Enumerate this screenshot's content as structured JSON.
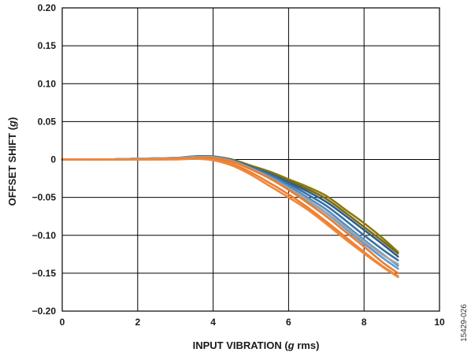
{
  "chart_data": {
    "type": "line",
    "xlabel_parts": [
      "INPUT VIBRATION (",
      "g",
      " rms)"
    ],
    "ylabel_parts": [
      "OFFSET SHIFT (",
      "g",
      ")"
    ],
    "xlim": [
      0,
      10
    ],
    "ylim": [
      -0.2,
      0.2
    ],
    "x_ticks": [
      0,
      2,
      4,
      6,
      8,
      10
    ],
    "x_tick_labels": [
      "0",
      "2",
      "4",
      "6",
      "8",
      "10"
    ],
    "y_ticks": [
      0.2,
      0.15,
      0.1,
      0.05,
      0,
      -0.05,
      -0.1,
      -0.15,
      -0.2
    ],
    "y_tick_labels": [
      "0.20",
      "0.15",
      "0.10",
      "0.05",
      "0",
      "−0.05",
      "−0.10",
      "−0.15",
      "−0.20"
    ],
    "grid": true,
    "legend": "none",
    "x": [
      0,
      1,
      2,
      3,
      3.5,
      4,
      4.5,
      5,
      5.5,
      6,
      6.5,
      7,
      7.5,
      8,
      8.5,
      8.9
    ],
    "series": [
      {
        "color": "#8B7A10",
        "values": [
          0,
          0,
          0.001,
          0.002,
          0.004,
          0.004,
          0,
          -0.008,
          -0.016,
          -0.026,
          -0.036,
          -0.048,
          -0.066,
          -0.084,
          -0.104,
          -0.122
        ]
      },
      {
        "color": "#7A6A14",
        "values": [
          0,
          0,
          0.001,
          0.002,
          0.003,
          0.003,
          -0.001,
          -0.009,
          -0.018,
          -0.028,
          -0.039,
          -0.052,
          -0.07,
          -0.089,
          -0.108,
          -0.124
        ]
      },
      {
        "color": "#2E5F8A",
        "values": [
          0,
          0,
          0.001,
          0.002,
          0.004,
          0.004,
          -0.001,
          -0.01,
          -0.019,
          -0.03,
          -0.042,
          -0.056,
          -0.074,
          -0.093,
          -0.112,
          -0.128
        ]
      },
      {
        "color": "#3A6FA0",
        "values": [
          0,
          0,
          0.001,
          0.002,
          0.004,
          0.004,
          -0.001,
          -0.01,
          -0.02,
          -0.032,
          -0.046,
          -0.061,
          -0.08,
          -0.1,
          -0.119,
          -0.133
        ]
      },
      {
        "color": "#4F8FCB",
        "values": [
          0,
          0,
          0.001,
          0.002,
          0.003,
          0.003,
          -0.002,
          -0.011,
          -0.022,
          -0.035,
          -0.05,
          -0.066,
          -0.086,
          -0.106,
          -0.125,
          -0.14
        ]
      },
      {
        "color": "#5B9BD5",
        "values": [
          0,
          0,
          0.001,
          0.002,
          0.003,
          0.003,
          -0.002,
          -0.012,
          -0.024,
          -0.038,
          -0.054,
          -0.071,
          -0.091,
          -0.111,
          -0.13,
          -0.144
        ]
      },
      {
        "color": "#A5A5A5",
        "values": [
          0,
          0,
          0.001,
          0.002,
          0.003,
          0.003,
          -0.002,
          -0.012,
          -0.024,
          -0.038,
          -0.053,
          -0.07,
          -0.089,
          -0.108,
          -0.126,
          -0.138
        ]
      },
      {
        "color": "#E87D2F",
        "values": [
          0,
          0,
          0,
          0.001,
          0.002,
          0.002,
          -0.003,
          -0.013,
          -0.025,
          -0.04,
          -0.057,
          -0.075,
          -0.095,
          -0.115,
          -0.136,
          -0.15
        ]
      },
      {
        "color": "#ED7D31",
        "values": [
          0,
          0,
          0,
          0.001,
          0.001,
          0,
          -0.006,
          -0.017,
          -0.031,
          -0.046,
          -0.063,
          -0.082,
          -0.102,
          -0.122,
          -0.141,
          -0.154
        ]
      },
      {
        "color": "#F0883A",
        "values": [
          0,
          0,
          0,
          0,
          0.001,
          -0.001,
          -0.008,
          -0.02,
          -0.035,
          -0.05,
          -0.066,
          -0.085,
          -0.105,
          -0.124,
          -0.142,
          -0.155
        ]
      }
    ]
  },
  "side_code": "15429-026"
}
